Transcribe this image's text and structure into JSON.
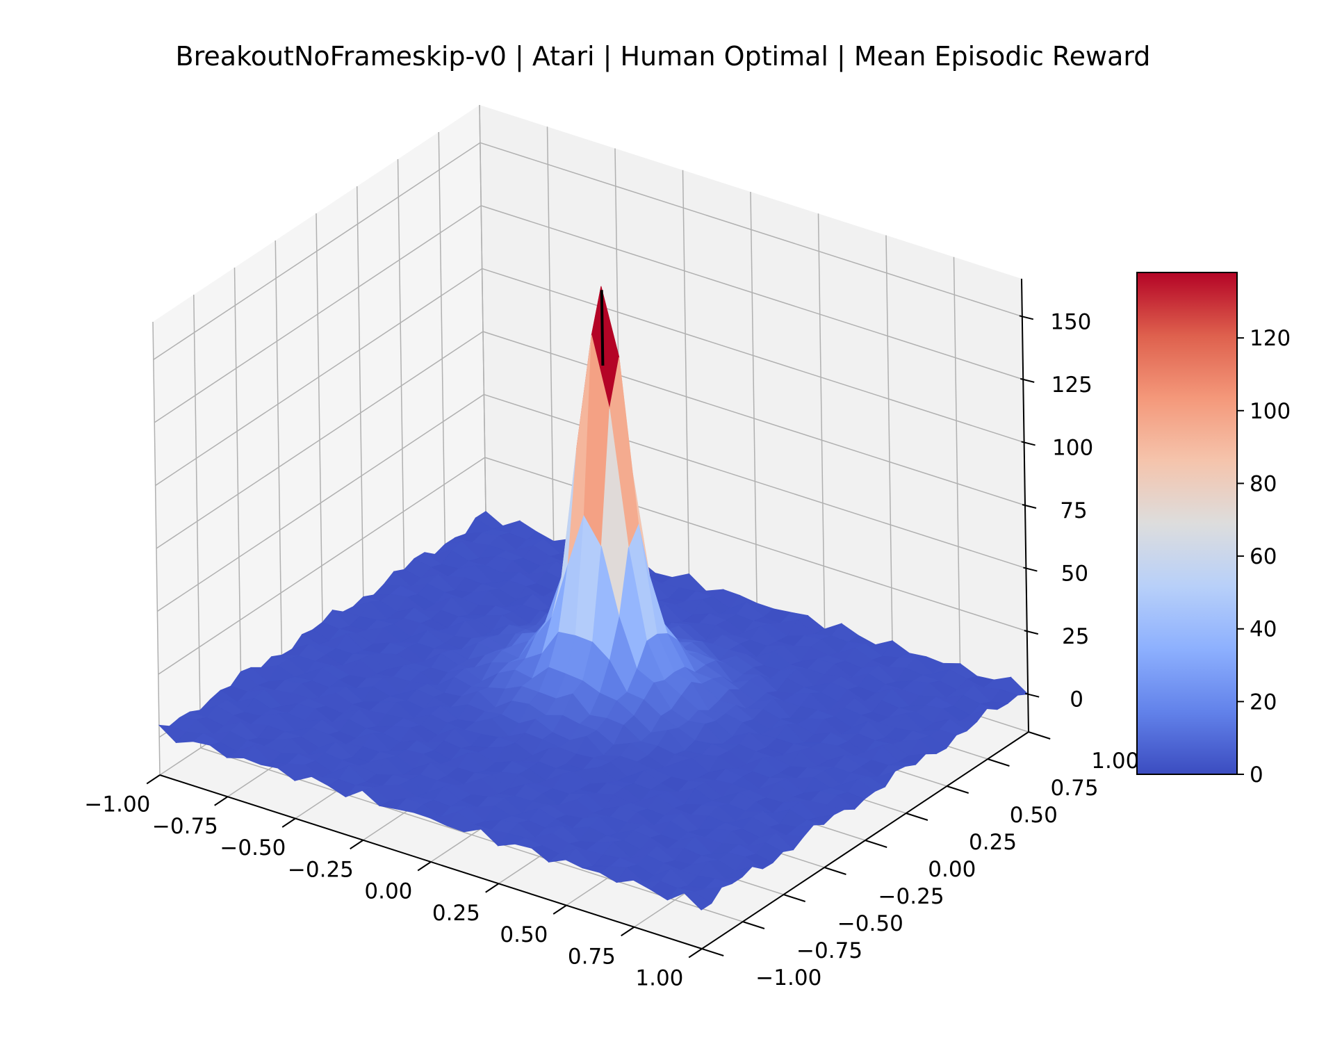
{
  "colors": {
    "pane_back": "#f1f1f1",
    "pane_left": "#f5f5f5",
    "pane_floor": "#f3f3f3",
    "grid": "#b0b0b0",
    "axis_line": "#000000",
    "colormap_stops": [
      "#3b4cc0",
      "#6282ea",
      "#8db0fe",
      "#b8d0f9",
      "#dddddd",
      "#f5c4ac",
      "#f4987a",
      "#de604d",
      "#b40426"
    ]
  },
  "chart_data": {
    "type": "surface",
    "colormap": "coolwarm",
    "title": "BreakoutNoFrameskip-v0 | Atari | Human Optimal | Mean Episodic Reward",
    "xlabel": "",
    "ylabel": "",
    "zlabel": "",
    "grid": true,
    "x_ticks": [
      "−1.00",
      "−0.75",
      "−0.50",
      "−0.25",
      "0.00",
      "0.25",
      "0.50",
      "0.75",
      "1.00"
    ],
    "y_ticks": [
      "−1.00",
      "−0.75",
      "−0.50",
      "−0.25",
      "0.00",
      "0.25",
      "0.50",
      "0.75",
      "1.00"
    ],
    "z_ticks": [
      "0",
      "25",
      "50",
      "75",
      "100",
      "125",
      "150"
    ],
    "xlim": [
      -1.0,
      1.0
    ],
    "ylim": [
      -1.0,
      1.0
    ],
    "zlim": [
      -15,
      165
    ],
    "surface": {
      "x_range": [
        -1.0,
        1.0
      ],
      "y_range": [
        -1.0,
        1.0
      ],
      "grid_size": 33,
      "peak": {
        "x": -0.05,
        "y": 0.17,
        "z": 138
      },
      "base_level": 2,
      "noise_amplitude": 3
    },
    "optimum_marker": {
      "x": -0.05,
      "y": 0.17,
      "z_from": 130,
      "z_to": 160
    },
    "colorbar": {
      "ticks": [
        "0",
        "20",
        "40",
        "60",
        "80",
        "100",
        "120"
      ],
      "range": [
        0,
        138
      ]
    }
  }
}
